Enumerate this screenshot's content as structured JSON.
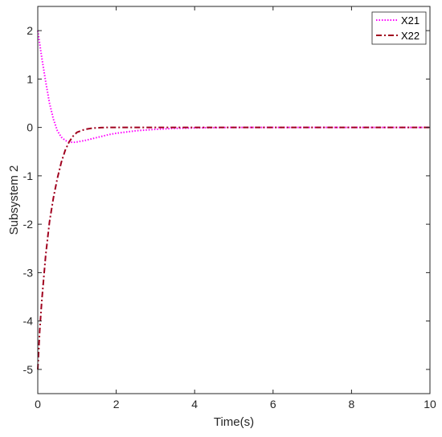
{
  "chart_data": {
    "type": "line",
    "xlabel": "Time(s)",
    "ylabel": "Subsystem 2",
    "xlim": [
      0,
      10
    ],
    "ylim": [
      -5.5,
      2.5
    ],
    "xticks": [
      0,
      2,
      4,
      6,
      8,
      10
    ],
    "yticks": [
      2,
      1,
      0,
      -1,
      -2,
      -3,
      -4,
      -5
    ],
    "grid": false,
    "legend_position": "top-right",
    "series": [
      {
        "name": "X21",
        "color": "#ff00ff",
        "style": "dotted",
        "x": [
          0,
          0.1,
          0.2,
          0.3,
          0.4,
          0.5,
          0.6,
          0.7,
          0.8,
          0.9,
          1.0,
          1.2,
          1.4,
          1.6,
          1.8,
          2.0,
          2.5,
          3.0,
          3.5,
          4.0,
          5.0,
          6.0,
          7.0,
          8.0,
          9.0,
          10.0
        ],
        "y": [
          2.0,
          1.45,
          0.95,
          0.5,
          0.17,
          -0.07,
          -0.2,
          -0.27,
          -0.3,
          -0.31,
          -0.3,
          -0.27,
          -0.23,
          -0.19,
          -0.15,
          -0.12,
          -0.07,
          -0.04,
          -0.02,
          -0.01,
          0,
          0,
          0,
          0,
          0,
          0
        ]
      },
      {
        "name": "X22",
        "color": "#a0001e",
        "style": "dashdot",
        "x": [
          0,
          0.05,
          0.1,
          0.2,
          0.3,
          0.4,
          0.5,
          0.6,
          0.7,
          0.8,
          0.9,
          1.0,
          1.2,
          1.4,
          1.6,
          1.8,
          2.0,
          2.5,
          3.0,
          4.0,
          5.0,
          6.0,
          7.0,
          8.0,
          9.0,
          10.0
        ],
        "y": [
          -5.0,
          -4.2,
          -3.6,
          -2.65,
          -1.95,
          -1.45,
          -1.05,
          -0.72,
          -0.47,
          -0.3,
          -0.18,
          -0.1,
          -0.04,
          -0.015,
          -0.005,
          0,
          0,
          0,
          0,
          0,
          0,
          0,
          0,
          0,
          0,
          0
        ]
      }
    ]
  }
}
